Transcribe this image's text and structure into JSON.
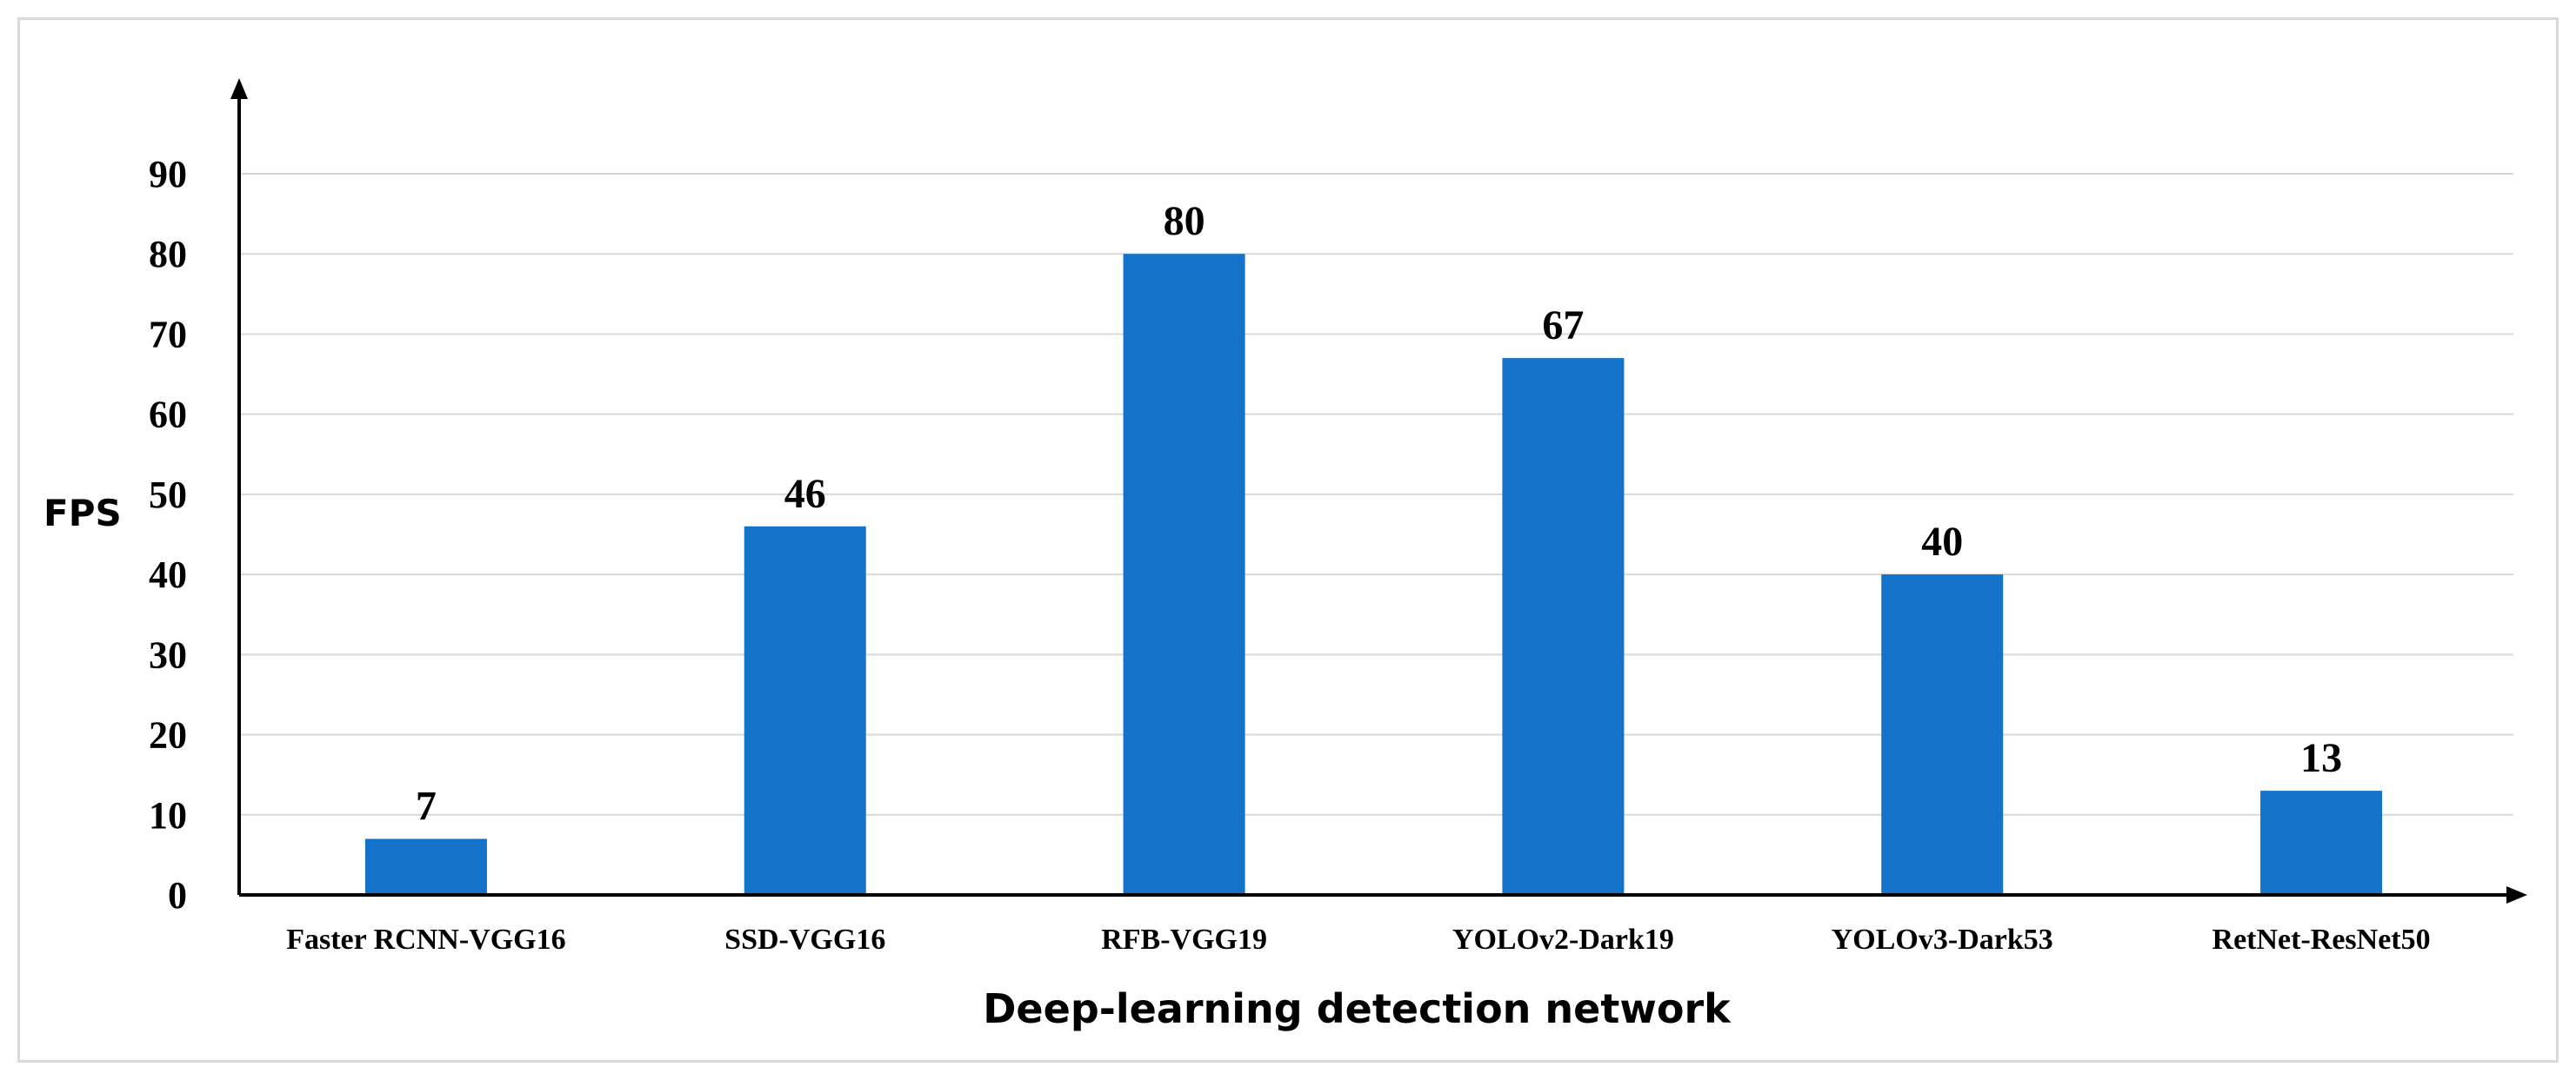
{
  "chart_data": {
    "type": "bar",
    "categories": [
      "Faster RCNN-VGG16",
      "SSD-VGG16",
      "RFB-VGG19",
      "YOLOv2-Dark19",
      "YOLOv3-Dark53",
      "RetNet-ResNet50"
    ],
    "values": [
      7,
      46,
      80,
      67,
      40,
      13
    ],
    "title": "",
    "xlabel": "Deep-learning detection network",
    "ylabel": "FPS",
    "ylim": [
      0,
      90
    ],
    "yticks": [
      0,
      10,
      20,
      30,
      40,
      50,
      60,
      70,
      80,
      90
    ],
    "grid": true,
    "legend": "none",
    "bar_color": "#1572c9",
    "grid_color": "#d9d9d9"
  }
}
